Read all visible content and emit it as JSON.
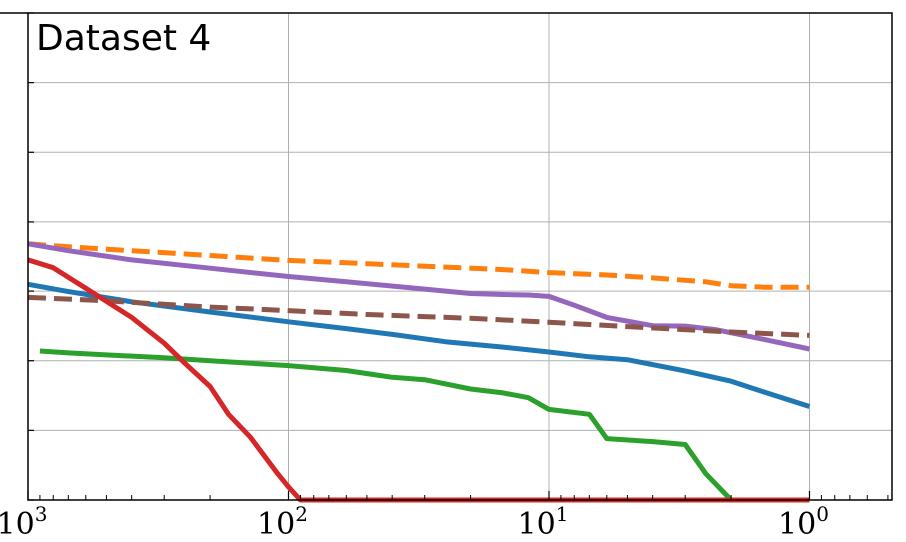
{
  "chart_data": {
    "type": "line",
    "title": "Dataset 4",
    "xlabel": "",
    "ylabel": "",
    "x_scale": "log",
    "x_reversed": true,
    "xlim": [
      1000,
      0.5
    ],
    "ylim": [
      0,
      1
    ],
    "grid": true,
    "x_ticks": [
      {
        "base": "10",
        "exp": "3",
        "value": 1000
      },
      {
        "base": "10",
        "exp": "2",
        "value": 100
      },
      {
        "base": "10",
        "exp": "1",
        "value": 10
      },
      {
        "base": "10",
        "exp": "0",
        "value": 1
      }
    ],
    "y_gridlines": [
      0,
      0.143,
      0.286,
      0.429,
      0.571,
      0.714,
      0.857,
      1
    ],
    "series": [
      {
        "color": "#ff7f0e",
        "style": "dashed",
        "x": [
          1000,
          700,
          400,
          200,
          100,
          60,
          30,
          15,
          10,
          6,
          4,
          2.5,
          2,
          1.5,
          1
        ],
        "y": [
          0.526,
          0.52,
          0.512,
          0.502,
          0.492,
          0.487,
          0.48,
          0.473,
          0.467,
          0.462,
          0.456,
          0.448,
          0.44,
          0.437,
          0.437
        ]
      },
      {
        "color": "#9467bd",
        "style": "solid",
        "x": [
          1000,
          700,
          400,
          200,
          100,
          60,
          30,
          20,
          15,
          12,
          10,
          8,
          6,
          4,
          3,
          2.3,
          1.5,
          1
        ],
        "y": [
          0.526,
          0.512,
          0.493,
          0.476,
          0.459,
          0.448,
          0.433,
          0.424,
          0.422,
          0.421,
          0.418,
          0.4,
          0.375,
          0.358,
          0.357,
          0.35,
          0.33,
          0.31
        ]
      },
      {
        "color": "#1f77b4",
        "style": "solid",
        "x": [
          1000,
          700,
          400,
          200,
          100,
          60,
          40,
          25,
          15,
          10,
          7,
          5,
          3,
          2,
          1.5,
          1
        ],
        "y": [
          0.443,
          0.428,
          0.407,
          0.386,
          0.366,
          0.352,
          0.34,
          0.325,
          0.314,
          0.304,
          0.294,
          0.288,
          0.265,
          0.244,
          0.222,
          0.192
        ]
      },
      {
        "color": "#8c564b",
        "style": "dashed",
        "x": [
          1000,
          500,
          200,
          100,
          50,
          20,
          10,
          5,
          2,
          1
        ],
        "y": [
          0.416,
          0.409,
          0.396,
          0.389,
          0.381,
          0.373,
          0.365,
          0.356,
          0.345,
          0.338
        ]
      },
      {
        "color": "#2ca02c",
        "style": "solid",
        "x": [
          900,
          700,
          500,
          300,
          200,
          100,
          60,
          40,
          30,
          20,
          15,
          12,
          10,
          7,
          6,
          4,
          3,
          2.5,
          2
        ],
        "y": [
          0.306,
          0.302,
          0.298,
          0.292,
          0.286,
          0.276,
          0.266,
          0.252,
          0.247,
          0.228,
          0.22,
          0.21,
          0.186,
          0.176,
          0.126,
          0.12,
          0.114,
          0.054,
          0.0
        ]
      },
      {
        "color": "#d62728",
        "style": "solid",
        "x": [
          1000,
          800,
          600,
          400,
          300,
          250,
          200,
          170,
          140,
          120,
          110,
          100,
          90,
          85,
          80,
          1
        ],
        "y": [
          0.493,
          0.477,
          0.435,
          0.375,
          0.322,
          0.281,
          0.233,
          0.176,
          0.129,
          0.081,
          0.054,
          0.027,
          0.0,
          0.0,
          0.0,
          0.0
        ]
      }
    ]
  }
}
